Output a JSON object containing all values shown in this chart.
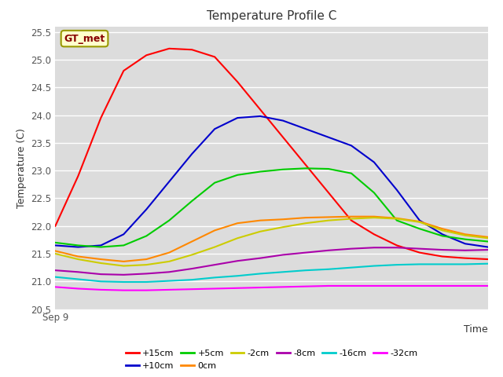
{
  "title": "Temperature Profile C",
  "xlabel": "Time",
  "ylabel": "Temperature (C)",
  "x_label_start": "Sep 9",
  "ylim": [
    20.5,
    25.6
  ],
  "background_color": "#dcdcdc",
  "gt_met_label": "GT_met",
  "gt_met_bg": "#ffffcc",
  "gt_met_border": "#999900",
  "gt_met_text_color": "#880000",
  "series": [
    {
      "label": "+15cm",
      "color": "#ff0000",
      "data": [
        22.0,
        22.9,
        23.95,
        24.8,
        25.08,
        25.2,
        25.18,
        25.05,
        24.6,
        24.1,
        23.6,
        23.1,
        22.6,
        22.1,
        21.85,
        21.65,
        21.52,
        21.45,
        21.42,
        21.4
      ]
    },
    {
      "label": "+10cm",
      "color": "#0000cc",
      "data": [
        21.65,
        21.62,
        21.65,
        21.85,
        22.3,
        22.8,
        23.3,
        23.75,
        23.95,
        23.98,
        23.9,
        23.75,
        23.6,
        23.45,
        23.15,
        22.65,
        22.1,
        21.85,
        21.68,
        21.62
      ]
    },
    {
      "label": "+5cm",
      "color": "#00cc00",
      "data": [
        21.7,
        21.65,
        21.62,
        21.65,
        21.82,
        22.1,
        22.45,
        22.78,
        22.92,
        22.98,
        23.02,
        23.04,
        23.03,
        22.95,
        22.6,
        22.1,
        21.95,
        21.82,
        21.76,
        21.72
      ]
    },
    {
      "label": "0cm",
      "color": "#ff8800",
      "data": [
        21.55,
        21.45,
        21.4,
        21.36,
        21.4,
        21.52,
        21.72,
        21.92,
        22.05,
        22.1,
        22.12,
        22.15,
        22.16,
        22.17,
        22.17,
        22.14,
        22.08,
        21.95,
        21.85,
        21.8
      ]
    },
    {
      "label": "-2cm",
      "color": "#cccc00",
      "data": [
        21.5,
        21.4,
        21.33,
        21.28,
        21.3,
        21.36,
        21.48,
        21.62,
        21.78,
        21.9,
        21.98,
        22.05,
        22.1,
        22.13,
        22.15,
        22.13,
        22.07,
        21.92,
        21.83,
        21.78
      ]
    },
    {
      "label": "-8cm",
      "color": "#aa00aa",
      "data": [
        21.2,
        21.17,
        21.13,
        21.12,
        21.14,
        21.17,
        21.23,
        21.3,
        21.37,
        21.42,
        21.48,
        21.52,
        21.56,
        21.59,
        21.61,
        21.61,
        21.59,
        21.57,
        21.56,
        21.57
      ]
    },
    {
      "label": "-16cm",
      "color": "#00cccc",
      "data": [
        21.08,
        21.04,
        21.0,
        20.99,
        20.99,
        21.01,
        21.03,
        21.07,
        21.1,
        21.14,
        21.17,
        21.2,
        21.22,
        21.25,
        21.28,
        21.3,
        21.31,
        21.31,
        21.31,
        21.32
      ]
    },
    {
      "label": "-32cm",
      "color": "#ff00ff",
      "data": [
        20.9,
        20.87,
        20.85,
        20.84,
        20.84,
        20.85,
        20.86,
        20.87,
        20.88,
        20.89,
        20.9,
        20.91,
        20.92,
        20.92,
        20.92,
        20.92,
        20.92,
        20.92,
        20.92,
        20.92
      ]
    }
  ]
}
